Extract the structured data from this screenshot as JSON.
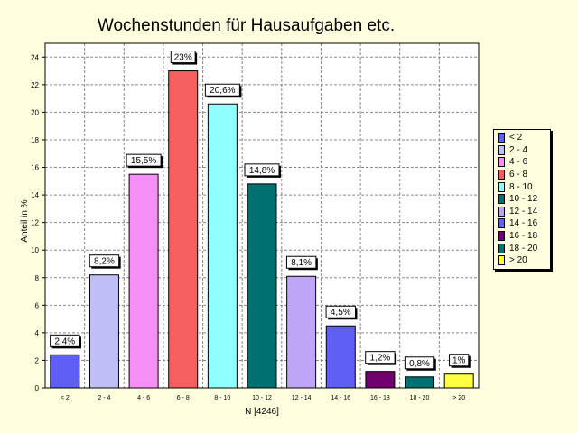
{
  "chart_data": {
    "type": "bar",
    "title": "Wochenstunden für Hausaufgaben etc.",
    "xlabel": "N [4246]",
    "ylabel": "Anteil in %",
    "ylim": [
      0,
      25
    ],
    "yticks": [
      "0",
      "2",
      "4",
      "6",
      "8",
      "10",
      "12",
      "14",
      "16",
      "18",
      "20",
      "22",
      "24"
    ],
    "grid": true,
    "legend_position": "right",
    "categories": [
      "< 2",
      "2 - 4",
      "4 - 6",
      "6 - 8",
      "8 - 10",
      "10 - 12",
      "12 - 14",
      "14 - 16",
      "16 - 18",
      "18 - 20",
      "> 20"
    ],
    "values": [
      2.4,
      8.2,
      15.5,
      23,
      20.6,
      14.8,
      8.1,
      4.5,
      1.2,
      0.8,
      1
    ],
    "value_labels": [
      "2,4%",
      "8,2%",
      "15,5%",
      "23%",
      "20,6%",
      "14,8%",
      "8,1%",
      "4,5%",
      "1,2%",
      "0,8%",
      "1%"
    ],
    "colors": [
      "#5f5ff5",
      "#bfbff5",
      "#f58ff5",
      "#f55f5f",
      "#8fffff",
      "#007070",
      "#bfa5f5",
      "#5f5ff5",
      "#700070",
      "#007070",
      "#ffff40"
    ]
  }
}
